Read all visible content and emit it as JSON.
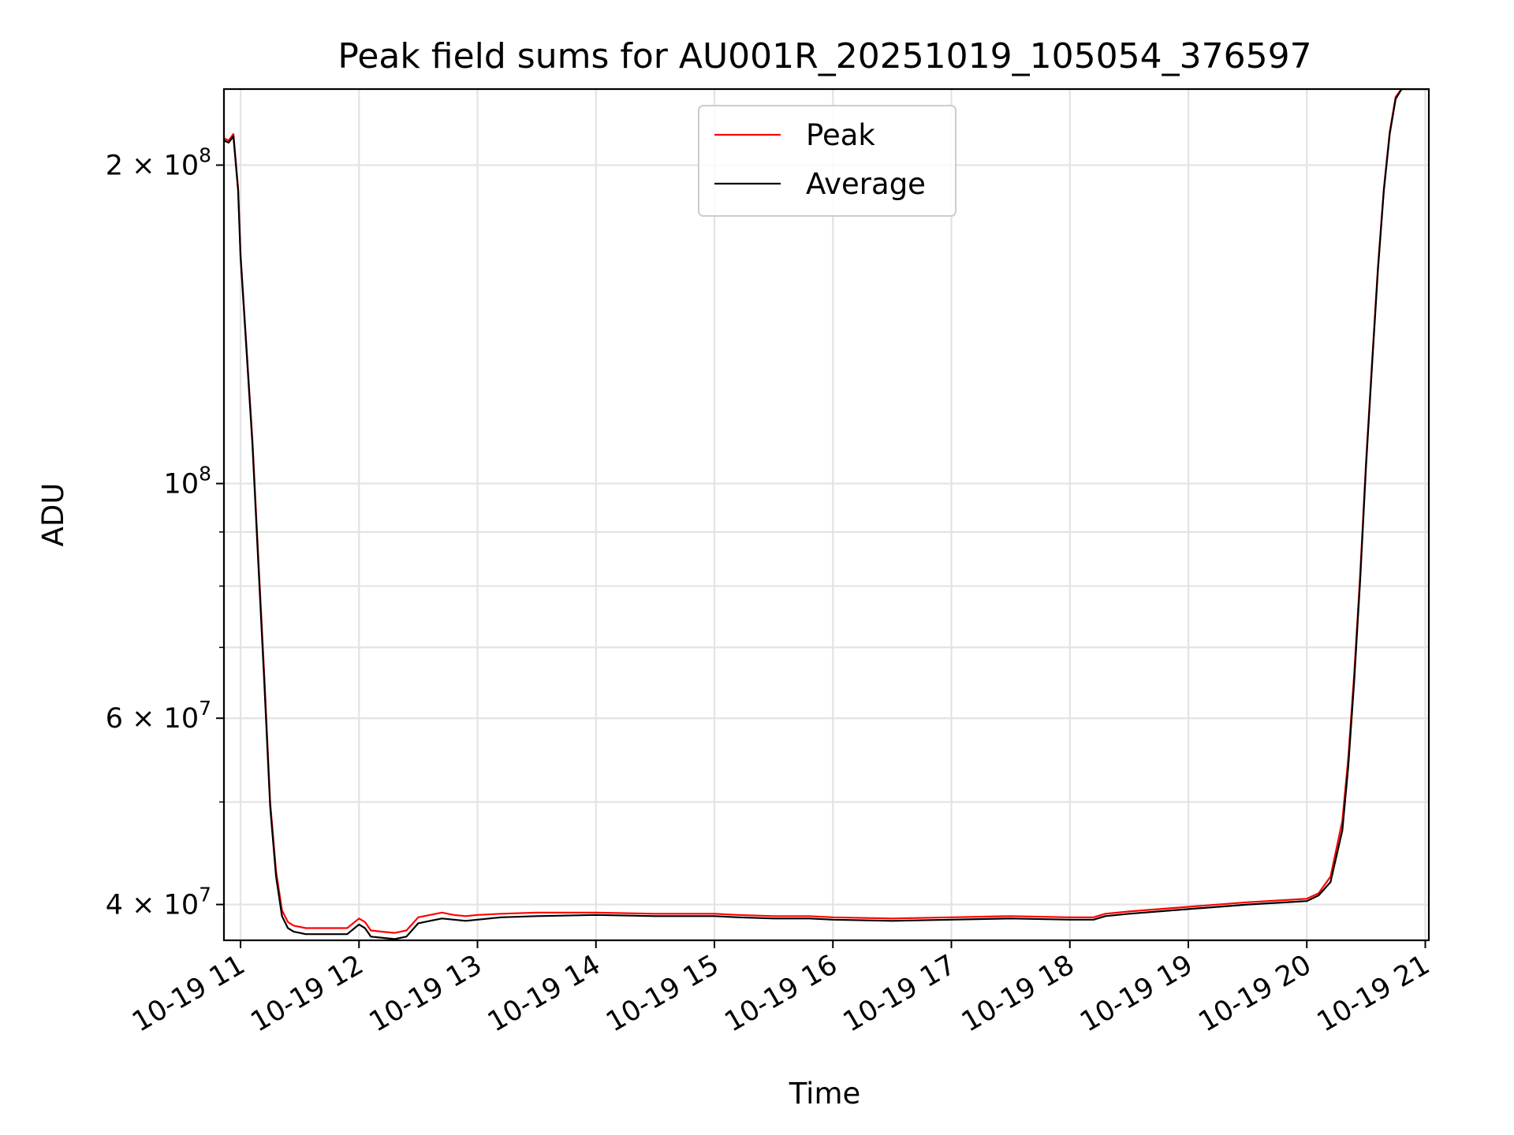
{
  "chart_data": {
    "type": "line",
    "title": "Peak field sums for AU001R_20251019_105054_376597",
    "xlabel": "Time",
    "ylabel": "ADU",
    "yscale": "log",
    "grid": true,
    "legend_position": "upper-center",
    "x_unit": "hours",
    "xlim": [
      10.86,
      21.03
    ],
    "ylim": [
      37000000,
      236000000
    ],
    "x_ticks": [
      {
        "value": 11,
        "label": "10-19 11"
      },
      {
        "value": 12,
        "label": "10-19 12"
      },
      {
        "value": 13,
        "label": "10-19 13"
      },
      {
        "value": 14,
        "label": "10-19 14"
      },
      {
        "value": 15,
        "label": "10-19 15"
      },
      {
        "value": 16,
        "label": "10-19 16"
      },
      {
        "value": 17,
        "label": "10-19 17"
      },
      {
        "value": 18,
        "label": "10-19 18"
      },
      {
        "value": 19,
        "label": "10-19 19"
      },
      {
        "value": 20,
        "label": "10-19 20"
      },
      {
        "value": 21,
        "label": "10-19 21"
      }
    ],
    "y_ticks": [
      {
        "value": 40000000,
        "mantissa": "4",
        "base": "10",
        "exp": "7"
      },
      {
        "value": 60000000,
        "mantissa": "6",
        "base": "10",
        "exp": "7"
      },
      {
        "value": 100000000,
        "mantissa": "",
        "base": "10",
        "exp": "8"
      },
      {
        "value": 200000000,
        "mantissa": "2",
        "base": "10",
        "exp": "8"
      }
    ],
    "y_minor_ticks": [
      50000000,
      70000000,
      80000000,
      90000000
    ],
    "series": [
      {
        "name": "Peak",
        "color": "#ff0000",
        "x": [
          10.86,
          10.9,
          10.94,
          10.98,
          11.0,
          11.05,
          11.1,
          11.15,
          11.2,
          11.25,
          11.3,
          11.35,
          11.4,
          11.45,
          11.5,
          11.55,
          11.6,
          11.7,
          11.8,
          11.9,
          12.0,
          12.05,
          12.1,
          12.2,
          12.3,
          12.4,
          12.5,
          12.6,
          12.7,
          12.8,
          12.9,
          13.0,
          13.2,
          13.5,
          14.0,
          14.5,
          15.0,
          15.2,
          15.5,
          15.8,
          16.0,
          16.5,
          17.0,
          17.5,
          18.0,
          18.2,
          18.3,
          18.5,
          19.0,
          19.5,
          20.0,
          20.1,
          20.2,
          20.3,
          20.35,
          20.4,
          20.45,
          20.5,
          20.55,
          20.6,
          20.65,
          20.7,
          20.75,
          20.8,
          20.85,
          21.03
        ],
        "y": [
          212000000,
          211000000,
          214000000,
          190000000,
          165000000,
          135000000,
          110000000,
          85000000,
          66000000,
          50000000,
          43000000,
          39500000,
          38500000,
          38200000,
          38100000,
          38000000,
          38000000,
          38000000,
          38000000,
          38000000,
          38800000,
          38500000,
          37800000,
          37700000,
          37600000,
          37800000,
          38900000,
          39100000,
          39300000,
          39100000,
          39000000,
          39100000,
          39200000,
          39300000,
          39300000,
          39200000,
          39200000,
          39100000,
          39000000,
          39000000,
          38900000,
          38800000,
          38900000,
          39000000,
          38900000,
          38900000,
          39200000,
          39400000,
          39800000,
          40200000,
          40500000,
          41000000,
          42500000,
          48000000,
          55000000,
          66000000,
          82000000,
          105000000,
          130000000,
          160000000,
          190000000,
          215000000,
          232000000,
          236000000,
          236000000,
          236000000
        ]
      },
      {
        "name": "Average",
        "color": "#000000",
        "x": [
          10.86,
          10.9,
          10.94,
          10.98,
          11.0,
          11.05,
          11.1,
          11.15,
          11.2,
          11.25,
          11.3,
          11.35,
          11.4,
          11.45,
          11.5,
          11.55,
          11.6,
          11.7,
          11.8,
          11.9,
          12.0,
          12.05,
          12.1,
          12.2,
          12.3,
          12.4,
          12.5,
          12.6,
          12.7,
          12.8,
          12.9,
          13.0,
          13.2,
          13.5,
          14.0,
          14.5,
          15.0,
          15.2,
          15.5,
          15.8,
          16.0,
          16.5,
          17.0,
          17.5,
          18.0,
          18.2,
          18.3,
          18.5,
          19.0,
          19.5,
          20.0,
          20.1,
          20.2,
          20.3,
          20.35,
          20.4,
          20.45,
          20.5,
          20.55,
          20.6,
          20.65,
          20.7,
          20.75,
          20.8,
          20.85,
          21.03
        ],
        "y": [
          211000000,
          210000000,
          213000000,
          189000000,
          164000000,
          134000000,
          109000000,
          84000000,
          65000000,
          49500000,
          42500000,
          39000000,
          38000000,
          37700000,
          37600000,
          37500000,
          37500000,
          37500000,
          37500000,
          37500000,
          38300000,
          38000000,
          37300000,
          37200000,
          37100000,
          37300000,
          38400000,
          38600000,
          38800000,
          38700000,
          38600000,
          38700000,
          38900000,
          39000000,
          39100000,
          39000000,
          39000000,
          38900000,
          38800000,
          38800000,
          38700000,
          38600000,
          38700000,
          38800000,
          38700000,
          38700000,
          39000000,
          39200000,
          39600000,
          40000000,
          40300000,
          40800000,
          42000000,
          47000000,
          54000000,
          65000000,
          81000000,
          104000000,
          129000000,
          159000000,
          189000000,
          214000000,
          231000000,
          236000000,
          236000000,
          236000000
        ]
      }
    ]
  }
}
